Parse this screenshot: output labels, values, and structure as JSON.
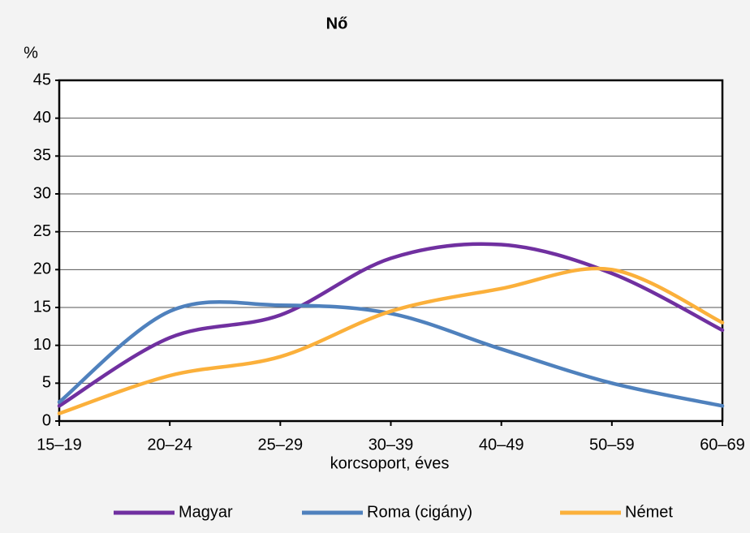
{
  "chart_data": {
    "type": "line",
    "title": "Nő",
    "y_label": "%",
    "x_label": "korcsoport, éves",
    "categories": [
      "15–19",
      "20–24",
      "25–29",
      "30–39",
      "40–49",
      "50–59",
      "60–69"
    ],
    "series": [
      {
        "name": "Magyar",
        "color": "#7030a0",
        "values": [
          2,
          11,
          14,
          21.5,
          23.3,
          19.5,
          12
        ]
      },
      {
        "name": "Roma (cigány)",
        "color": "#4f81bd",
        "values": [
          2.5,
          14.5,
          15.3,
          14.2,
          9.5,
          5,
          2
        ]
      },
      {
        "name": "Német",
        "color": "#fbb03b",
        "values": [
          1,
          6,
          8.5,
          14.5,
          17.5,
          20,
          13
        ]
      }
    ],
    "ylim": [
      0,
      45
    ],
    "yticks": [
      0,
      5,
      10,
      15,
      20,
      25,
      30,
      35,
      40,
      45
    ],
    "grid": true,
    "legend": "bottom"
  }
}
